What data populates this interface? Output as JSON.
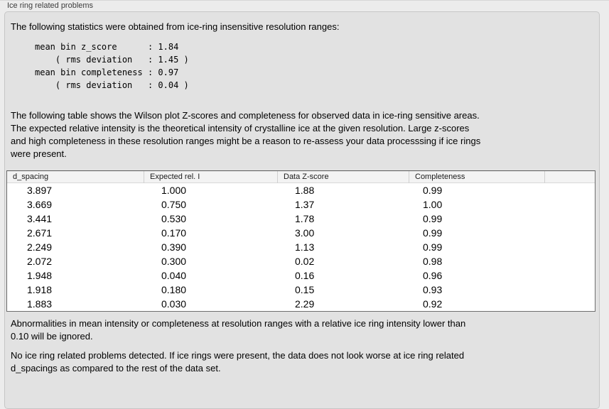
{
  "panel": {
    "title": "Ice ring related problems"
  },
  "intro": {
    "text": "The following statistics were obtained from ice-ring insensitive resolution ranges:",
    "stats_block": "mean bin z_score      : 1.84\n    ( rms deviation   : 1.45 )\nmean bin completeness : 0.97\n    ( rms deviation   : 0.04 )"
  },
  "description": "The following table shows the Wilson plot Z-scores and completeness for observed data in ice-ring sensitive areas.\nThe expected relative intensity is the theoretical intensity of crystalline ice at the given resolution. Large z-scores\nand high completeness in these resolution ranges might be a reason to re-assess your data processsing if ice rings\nwere present.",
  "table": {
    "columns": [
      "d_spacing",
      "Expected rel. I",
      "Data Z-score",
      "Completeness",
      ""
    ],
    "rows": [
      [
        "3.897",
        "1.000",
        "1.88",
        "0.99"
      ],
      [
        "3.669",
        "0.750",
        "1.37",
        "1.00"
      ],
      [
        "3.441",
        "0.530",
        "1.78",
        "0.99"
      ],
      [
        "2.671",
        "0.170",
        "3.00",
        "0.99"
      ],
      [
        "2.249",
        "0.390",
        "1.13",
        "0.99"
      ],
      [
        "2.072",
        "0.300",
        "0.02",
        "0.98"
      ],
      [
        "1.948",
        "0.040",
        "0.16",
        "0.96"
      ],
      [
        "1.918",
        "0.180",
        "0.15",
        "0.93"
      ],
      [
        "1.883",
        "0.030",
        "2.29",
        "0.92"
      ]
    ]
  },
  "notes": {
    "ignore_note": "Abnormalities in mean intensity or completeness at resolution ranges with a relative ice ring intensity lower than\n0.10 will be ignored.",
    "conclusion": "No ice ring related problems detected. If ice rings were present, the data does not look worse at ice ring related\nd_spacings as compared to the rest of the data set."
  },
  "colors": {
    "page_background": "#ececec",
    "groupbox_background": "#e2e2e2",
    "groupbox_border": "#c6c6c6",
    "table_border": "#6f6f6f",
    "table_header_background": "#f3f3f3",
    "text": "#000000"
  }
}
